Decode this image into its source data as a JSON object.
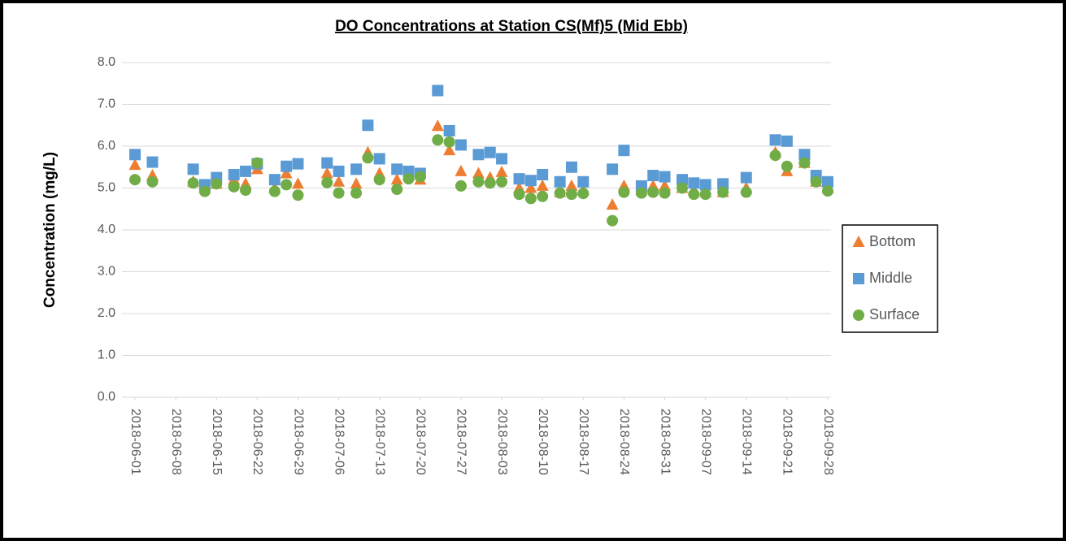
{
  "chart_data": {
    "type": "scatter",
    "title": "DO Concentrations at Station CS(Mf)5 (Mid Ebb)",
    "y_label": "Concentration (mg/L)",
    "x": [
      "2018-06-01",
      "2018-06-04",
      "2018-06-11",
      "2018-06-13",
      "2018-06-15",
      "2018-06-18",
      "2018-06-20",
      "2018-06-22",
      "2018-06-25",
      "2018-06-27",
      "2018-06-29",
      "2018-07-04",
      "2018-07-06",
      "2018-07-09",
      "2018-07-11",
      "2018-07-13",
      "2018-07-16",
      "2018-07-18",
      "2018-07-20",
      "2018-07-23",
      "2018-07-25",
      "2018-07-27",
      "2018-07-30",
      "2018-08-01",
      "2018-08-03",
      "2018-08-06",
      "2018-08-08",
      "2018-08-10",
      "2018-08-13",
      "2018-08-15",
      "2018-08-17",
      "2018-08-22",
      "2018-08-24",
      "2018-08-27",
      "2018-08-29",
      "2018-08-31",
      "2018-09-03",
      "2018-09-05",
      "2018-09-07",
      "2018-09-10",
      "2018-09-14",
      "2018-09-19",
      "2018-09-21",
      "2018-09-24",
      "2018-09-26",
      "2018-09-28"
    ],
    "series": [
      {
        "name": "Bottom",
        "color": "#ed7d31",
        "marker": "triangle",
        "values": [
          5.55,
          5.3,
          5.15,
          5.0,
          5.1,
          5.2,
          5.1,
          5.45,
          5.0,
          5.35,
          5.1,
          5.35,
          5.15,
          5.1,
          5.85,
          5.35,
          5.2,
          5.3,
          5.2,
          6.48,
          5.9,
          5.4,
          5.35,
          5.25,
          5.38,
          5.0,
          5.0,
          5.05,
          4.9,
          5.05,
          4.95,
          4.6,
          5.05,
          4.95,
          5.05,
          5.05,
          5.0,
          4.95,
          4.9,
          4.9,
          5.0,
          5.85,
          5.4,
          5.6,
          5.15,
          5.0
        ]
      },
      {
        "name": "Middle",
        "color": "#5b9bd5",
        "marker": "square",
        "values": [
          5.8,
          5.62,
          5.45,
          5.08,
          5.25,
          5.32,
          5.4,
          5.58,
          5.2,
          5.52,
          5.58,
          5.6,
          5.4,
          5.45,
          6.5,
          5.7,
          5.45,
          5.4,
          5.35,
          7.33,
          6.37,
          6.03,
          5.8,
          5.85,
          5.7,
          5.22,
          5.18,
          5.32,
          5.15,
          5.5,
          5.15,
          5.45,
          5.9,
          5.05,
          5.3,
          5.27,
          5.2,
          5.12,
          5.08,
          5.1,
          5.25,
          6.15,
          6.12,
          5.8,
          5.3,
          5.15
        ]
      },
      {
        "name": "Surface",
        "color": "#70ad47",
        "marker": "circle",
        "values": [
          5.2,
          5.15,
          5.12,
          4.92,
          5.1,
          5.03,
          4.95,
          5.6,
          4.92,
          5.08,
          4.83,
          5.13,
          4.88,
          4.88,
          5.72,
          5.2,
          4.97,
          5.22,
          5.27,
          6.15,
          6.1,
          5.05,
          5.15,
          5.12,
          5.15,
          4.85,
          4.75,
          4.8,
          4.88,
          4.85,
          4.87,
          4.22,
          4.9,
          4.88,
          4.9,
          4.88,
          5.0,
          4.85,
          4.85,
          4.9,
          4.9,
          5.78,
          5.52,
          5.6,
          5.15,
          4.93
        ]
      }
    ],
    "xlim": [
      "2018-06-01",
      "2018-09-28"
    ],
    "xticks": [
      "2018-06-01",
      "2018-06-08",
      "2018-06-15",
      "2018-06-22",
      "2018-06-29",
      "2018-07-06",
      "2018-07-13",
      "2018-07-20",
      "2018-07-27",
      "2018-08-03",
      "2018-08-10",
      "2018-08-17",
      "2018-08-24",
      "2018-08-31",
      "2018-09-07",
      "2018-09-14",
      "2018-09-21",
      "2018-09-28"
    ],
    "ylim": [
      0,
      8
    ],
    "yticks": [
      {
        "value": 0,
        "label": "0.0"
      },
      {
        "value": 1,
        "label": "1.0"
      },
      {
        "value": 2,
        "label": "2.0"
      },
      {
        "value": 3,
        "label": "3.0"
      },
      {
        "value": 4,
        "label": "4.0"
      },
      {
        "value": 5,
        "label": "5.0"
      },
      {
        "value": 6,
        "label": "6.0"
      },
      {
        "value": 7,
        "label": "7.0"
      },
      {
        "value": 8,
        "label": "8.0"
      }
    ],
    "grid": true,
    "legend": "right"
  }
}
